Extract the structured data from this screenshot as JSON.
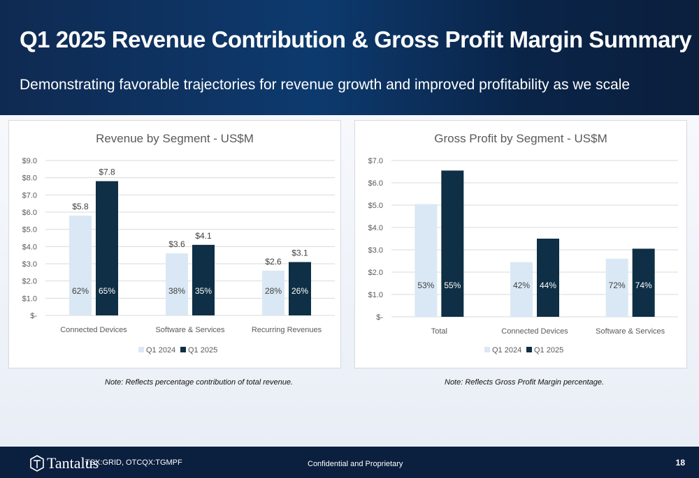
{
  "header": {
    "title": "Q1 2025 Revenue Contribution & Gross Profit Margin Summary",
    "subtitle": "Demonstrating favorable trajectories for revenue growth and improved profitability as we scale"
  },
  "colors": {
    "q1_2024": "#dae8f5",
    "q1_2025": "#0e2f45"
  },
  "chart_data": [
    {
      "type": "bar",
      "title": "Revenue by Segment - US$M",
      "categories": [
        "Connected Devices",
        "Software & Services",
        "Recurring Revenues"
      ],
      "ylim": [
        0,
        9
      ],
      "y_ticks": [
        "$-",
        "$1.0",
        "$2.0",
        "$3.0",
        "$4.0",
        "$5.0",
        "$6.0",
        "$7.0",
        "$8.0",
        "$9.0"
      ],
      "series": [
        {
          "name": "Q1 2024",
          "values": [
            5.8,
            3.6,
            2.6
          ],
          "value_labels": [
            "$5.8",
            "$3.6",
            "$2.6"
          ],
          "percent_labels": [
            "62%",
            "38%",
            "28%"
          ]
        },
        {
          "name": "Q1 2025",
          "values": [
            7.8,
            4.1,
            3.1
          ],
          "value_labels": [
            "$7.8",
            "$4.1",
            "$3.1"
          ],
          "percent_labels": [
            "65%",
            "35%",
            "26%"
          ]
        }
      ],
      "grid": true,
      "legend": "bottom",
      "note": "Note: Reflects percentage contribution of total revenue."
    },
    {
      "type": "bar",
      "title": "Gross Profit by Segment - US$M",
      "categories": [
        "Total",
        "Connected Devices",
        "Software & Services"
      ],
      "ylim": [
        0,
        7
      ],
      "y_ticks": [
        "$-",
        "$1.0",
        "$2.0",
        "$3.0",
        "$4.0",
        "$5.0",
        "$6.0",
        "$7.0"
      ],
      "series": [
        {
          "name": "Q1 2024",
          "values": [
            5.05,
            2.45,
            2.6
          ],
          "percent_labels": [
            "53%",
            "42%",
            "72%"
          ]
        },
        {
          "name": "Q1 2025",
          "values": [
            6.55,
            3.5,
            3.05
          ],
          "percent_labels": [
            "55%",
            "44%",
            "74%"
          ]
        }
      ],
      "grid": true,
      "legend": "bottom",
      "note": "Note: Reflects Gross Profit Margin percentage."
    }
  ],
  "footer": {
    "logo_text": "Tantalus",
    "ticker": "TSX:GRID, OTCQX:TGMPF",
    "confidential": "Confidential and Proprietary",
    "page_number": "18"
  }
}
